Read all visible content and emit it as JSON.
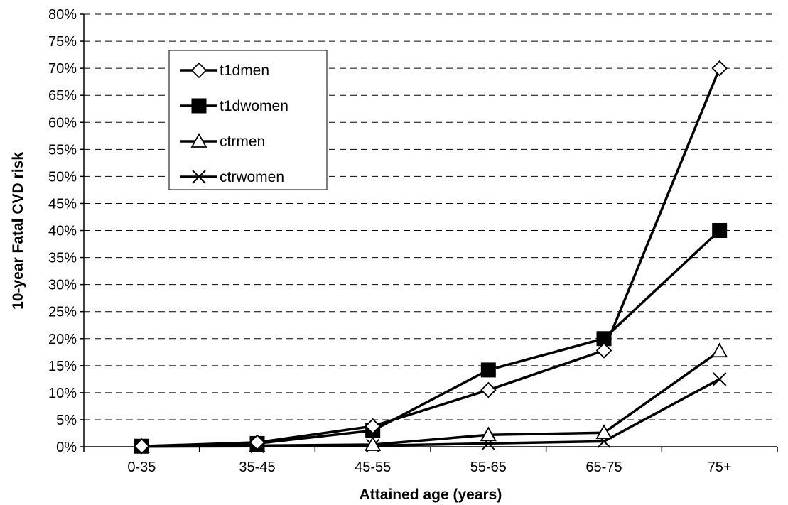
{
  "chart_data": {
    "type": "line",
    "title": "",
    "xlabel": "Attained age (years)",
    "ylabel": "10-year Fatal CVD risk",
    "categories": [
      "0-35",
      "35-45",
      "45-55",
      "55-65",
      "65-75",
      "75+"
    ],
    "ylim": [
      0,
      80
    ],
    "ytick_step": 5,
    "ytick_suffix": "%",
    "grid": "horizontal-dashed",
    "legend_placement": "top-left",
    "series": [
      {
        "name": "t1dmen",
        "marker": "diamond-open",
        "values": [
          0.1,
          0.8,
          3.8,
          10.5,
          17.8,
          70
        ]
      },
      {
        "name": "t1dwomen",
        "marker": "square-filled",
        "values": [
          0.1,
          0.6,
          3.0,
          14.2,
          20.0,
          40
        ]
      },
      {
        "name": "ctrmen",
        "marker": "triangle-open",
        "values": [
          0.05,
          0.2,
          0.4,
          2.2,
          2.6,
          17.7
        ]
      },
      {
        "name": "ctrwomen",
        "marker": "x",
        "values": [
          0.05,
          0.1,
          0.2,
          0.6,
          1.0,
          12.5
        ]
      }
    ]
  }
}
